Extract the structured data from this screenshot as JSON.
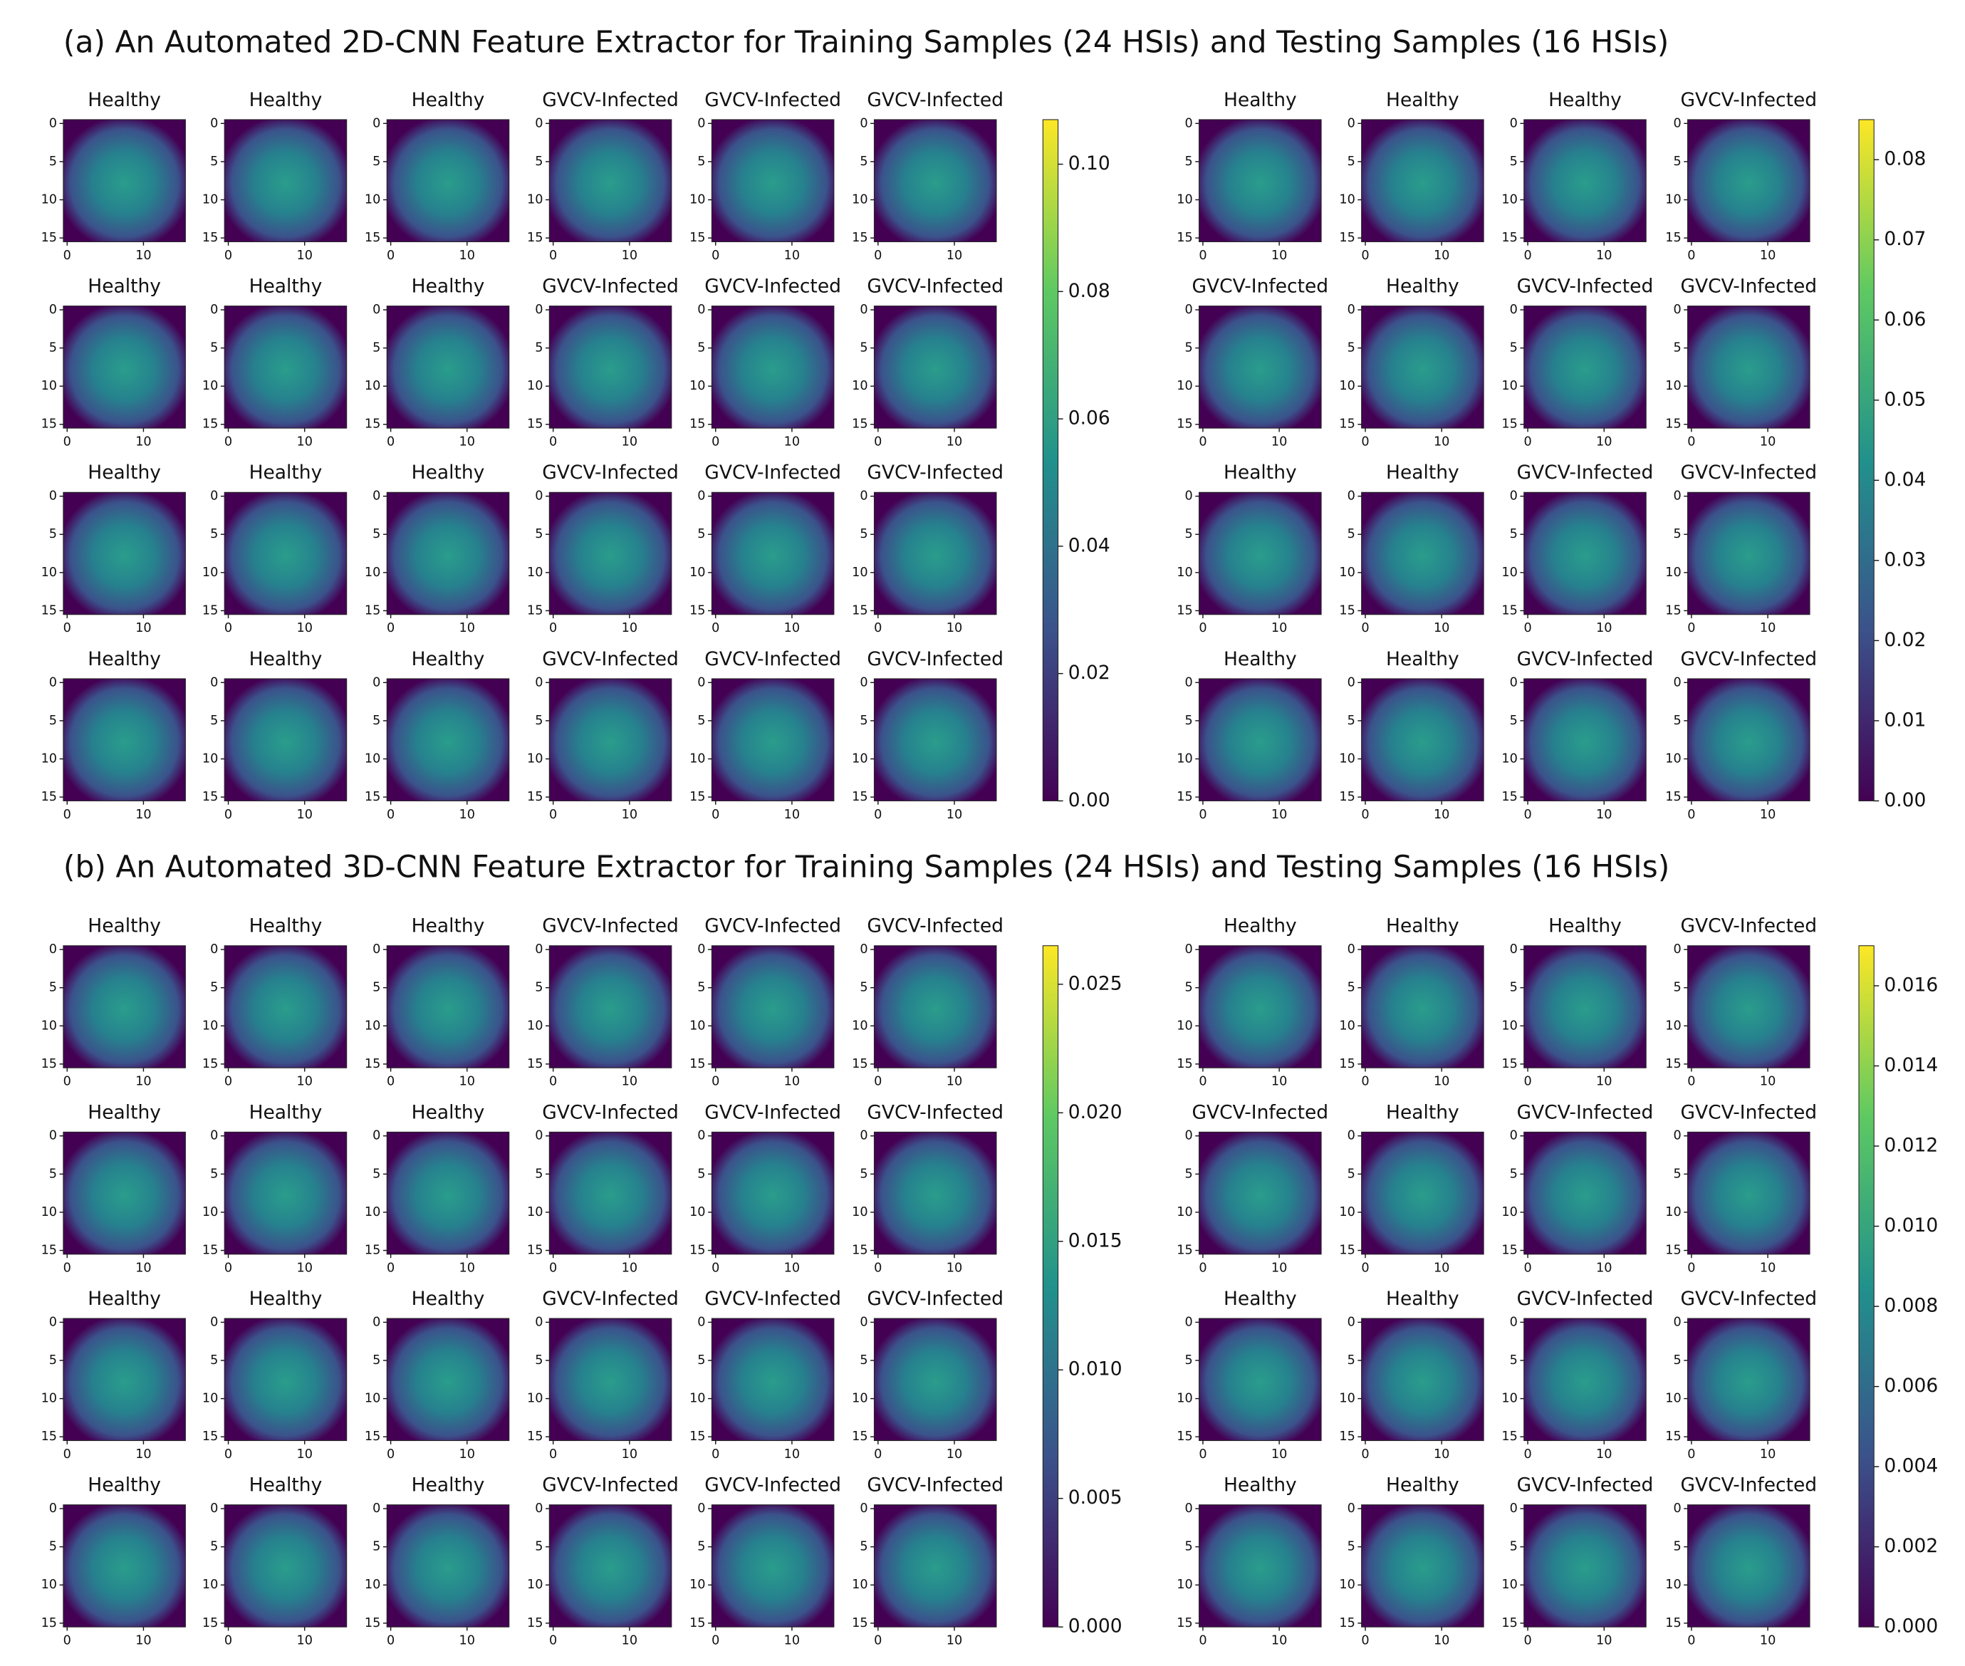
{
  "figures": [
    {
      "title": "(a) An Automated 2D-CNN Feature Extractor for Training Samples (24 HSIs) and Testing Samples (16 HSIs)",
      "groups": [
        {
          "panels": [
            [
              "Healthy",
              "Healthy",
              "Healthy",
              "GVCV-Infected",
              "GVCV-Infected",
              "GVCV-Infected"
            ],
            [
              "Healthy",
              "Healthy",
              "Healthy",
              "GVCV-Infected",
              "GVCV-Infected",
              "GVCV-Infected"
            ],
            [
              "Healthy",
              "Healthy",
              "Healthy",
              "GVCV-Infected",
              "GVCV-Infected",
              "GVCV-Infected"
            ],
            [
              "Healthy",
              "Healthy",
              "Healthy",
              "GVCV-Infected",
              "GVCV-Infected",
              "GVCV-Infected"
            ]
          ],
          "colorbar": {
            "lim": [
              0,
              0.107
            ],
            "ticks": [
              {
                "value": 0,
                "label": "0.00"
              },
              {
                "value": 0.02,
                "label": "0.02"
              },
              {
                "value": 0.04,
                "label": "0.04"
              },
              {
                "value": 0.06,
                "label": "0.06"
              },
              {
                "value": 0.08,
                "label": "0.08"
              },
              {
                "value": 0.1,
                "label": "0.10"
              }
            ]
          }
        },
        {
          "panels": [
            [
              "Healthy",
              "Healthy",
              "Healthy",
              "GVCV-Infected"
            ],
            [
              "GVCV-Infected",
              "Healthy",
              "GVCV-Infected",
              "GVCV-Infected"
            ],
            [
              "Healthy",
              "Healthy",
              "GVCV-Infected",
              "GVCV-Infected"
            ],
            [
              "Healthy",
              "Healthy",
              "GVCV-Infected",
              "GVCV-Infected"
            ]
          ],
          "colorbar": {
            "lim": [
              0,
              0.085
            ],
            "ticks": [
              {
                "value": 0,
                "label": "0.00"
              },
              {
                "value": 0.01,
                "label": "0.01"
              },
              {
                "value": 0.02,
                "label": "0.02"
              },
              {
                "value": 0.03,
                "label": "0.03"
              },
              {
                "value": 0.04,
                "label": "0.04"
              },
              {
                "value": 0.05,
                "label": "0.05"
              },
              {
                "value": 0.06,
                "label": "0.06"
              },
              {
                "value": 0.07,
                "label": "0.07"
              },
              {
                "value": 0.08,
                "label": "0.08"
              }
            ]
          }
        }
      ]
    },
    {
      "title": "(b) An Automated 3D-CNN Feature Extractor for Training Samples (24 HSIs) and Testing Samples (16 HSIs)",
      "groups": [
        {
          "panels": [
            [
              "Healthy",
              "Healthy",
              "Healthy",
              "GVCV-Infected",
              "GVCV-Infected",
              "GVCV-Infected"
            ],
            [
              "Healthy",
              "Healthy",
              "Healthy",
              "GVCV-Infected",
              "GVCV-Infected",
              "GVCV-Infected"
            ],
            [
              "Healthy",
              "Healthy",
              "Healthy",
              "GVCV-Infected",
              "GVCV-Infected",
              "GVCV-Infected"
            ],
            [
              "Healthy",
              "Healthy",
              "Healthy",
              "GVCV-Infected",
              "GVCV-Infected",
              "GVCV-Infected"
            ]
          ],
          "colorbar": {
            "lim": [
              0,
              0.0265
            ],
            "ticks": [
              {
                "value": 0,
                "label": "0.000"
              },
              {
                "value": 0.005,
                "label": "0.005"
              },
              {
                "value": 0.01,
                "label": "0.010"
              },
              {
                "value": 0.015,
                "label": "0.015"
              },
              {
                "value": 0.02,
                "label": "0.020"
              },
              {
                "value": 0.025,
                "label": "0.025"
              }
            ]
          }
        },
        {
          "panels": [
            [
              "Healthy",
              "Healthy",
              "Healthy",
              "GVCV-Infected"
            ],
            [
              "GVCV-Infected",
              "Healthy",
              "GVCV-Infected",
              "GVCV-Infected"
            ],
            [
              "Healthy",
              "Healthy",
              "GVCV-Infected",
              "GVCV-Infected"
            ],
            [
              "Healthy",
              "Healthy",
              "GVCV-Infected",
              "GVCV-Infected"
            ]
          ],
          "colorbar": {
            "lim": [
              0,
              0.017
            ],
            "ticks": [
              {
                "value": 0,
                "label": "0.000"
              },
              {
                "value": 0.002,
                "label": "0.002"
              },
              {
                "value": 0.004,
                "label": "0.004"
              },
              {
                "value": 0.006,
                "label": "0.006"
              },
              {
                "value": 0.008,
                "label": "0.008"
              },
              {
                "value": 0.01,
                "label": "0.010"
              },
              {
                "value": 0.012,
                "label": "0.012"
              },
              {
                "value": 0.014,
                "label": "0.014"
              },
              {
                "value": 0.016,
                "label": "0.016"
              }
            ]
          }
        }
      ]
    }
  ],
  "axis": {
    "lim": [
      -0.5,
      15.5
    ],
    "xticks": [
      0,
      10
    ],
    "yticks": [
      0,
      5,
      10,
      15
    ]
  }
}
